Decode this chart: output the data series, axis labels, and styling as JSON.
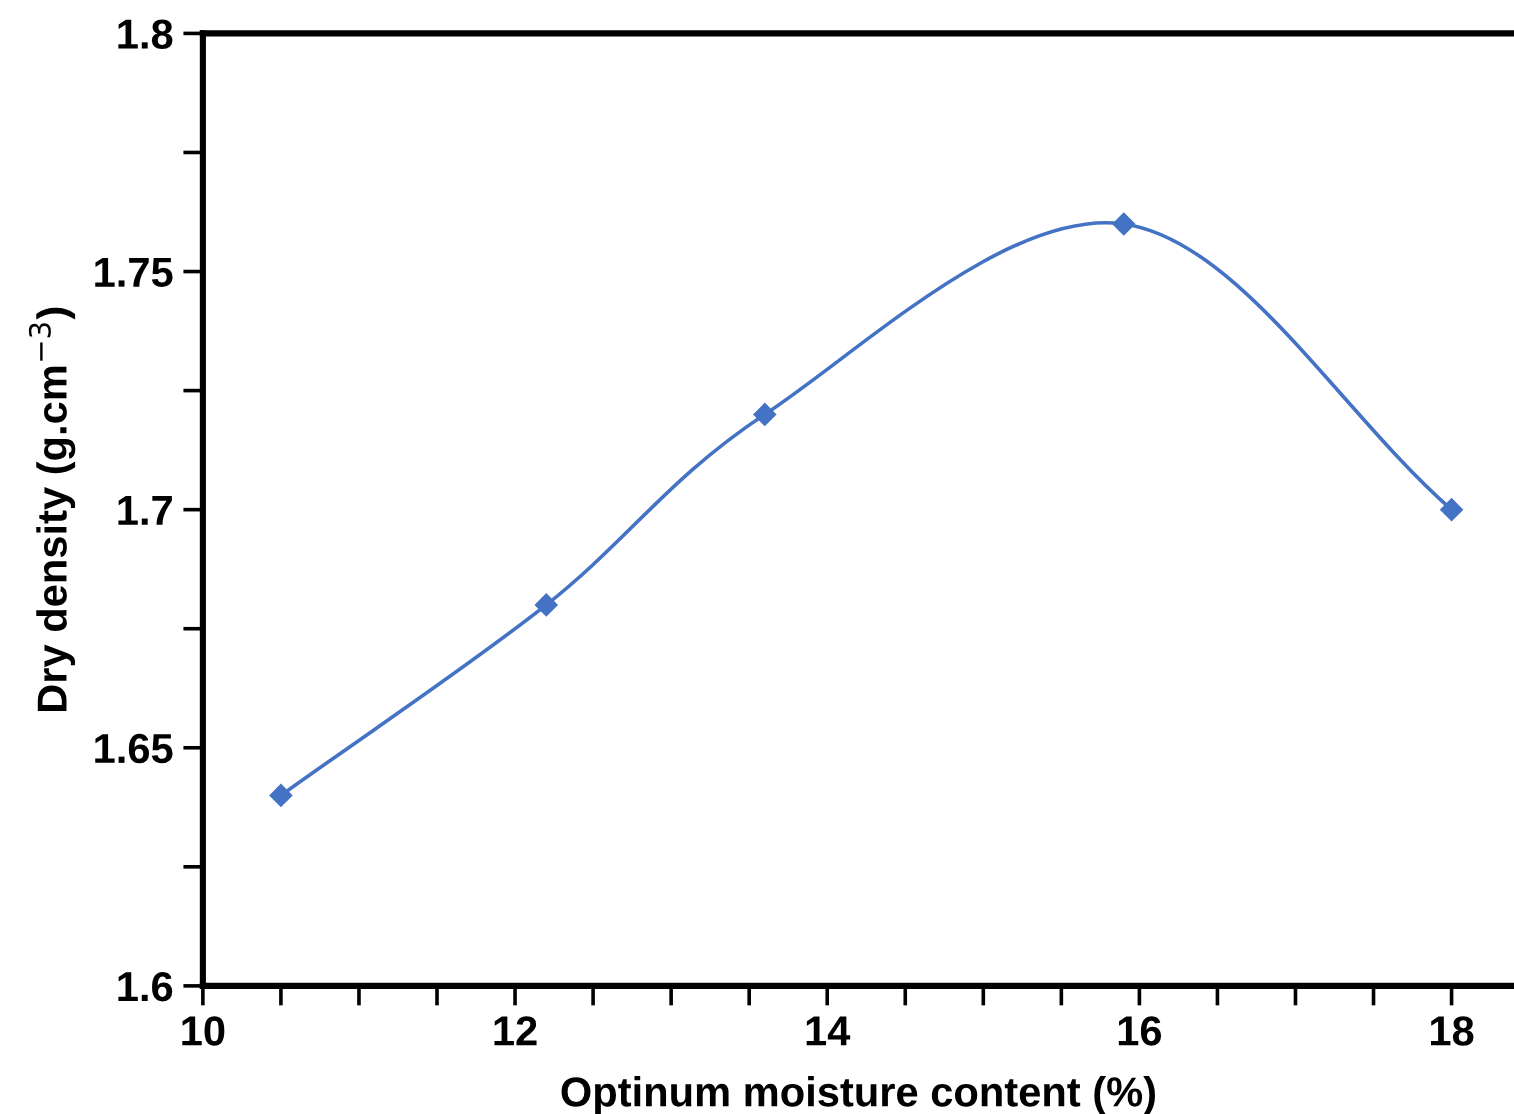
{
  "chart_data": {
    "type": "line",
    "xlabel": "Optinum moisture content (%)",
    "ylabel": "Dry density (g.cm$^{−3}$)",
    "x": [
      10.5,
      12.2,
      13.6,
      15.9,
      18
    ],
    "series": [
      {
        "color": "#4472c4",
        "values": [
          1.64,
          1.68,
          1.72,
          1.76,
          1.7
        ]
      }
    ],
    "xlim": [
      10,
      18.4
    ],
    "xticks": [
      10,
      {
        "value": 10.5,
        "label": null
      },
      {
        "value": 11,
        "label": null
      },
      {
        "value": 11.5,
        "label": null
      },
      12,
      {
        "value": 12.5,
        "label": null
      },
      {
        "value": 13,
        "label": null
      },
      {
        "value": 13.5,
        "label": null
      },
      14,
      {
        "value": 14.5,
        "label": null
      },
      {
        "value": 15,
        "label": null
      },
      {
        "value": 15.5,
        "label": null
      },
      16,
      {
        "value": 16.5,
        "label": null
      },
      {
        "value": 17,
        "label": null
      },
      {
        "value": 17.5,
        "label": null
      },
      18
    ],
    "ylim": [
      1.6,
      1.8
    ],
    "yticks": [
      1.6,
      {
        "value": 1.625,
        "label": null
      },
      1.65,
      {
        "value": 1.675,
        "label": null
      },
      1.7,
      {
        "value": 1.725,
        "label": null
      },
      1.75,
      {
        "value": 1.775,
        "label": null
      },
      1.8
    ],
    "marker": "diamond",
    "line_style": "solid",
    "grid": false,
    "legend": false
  }
}
